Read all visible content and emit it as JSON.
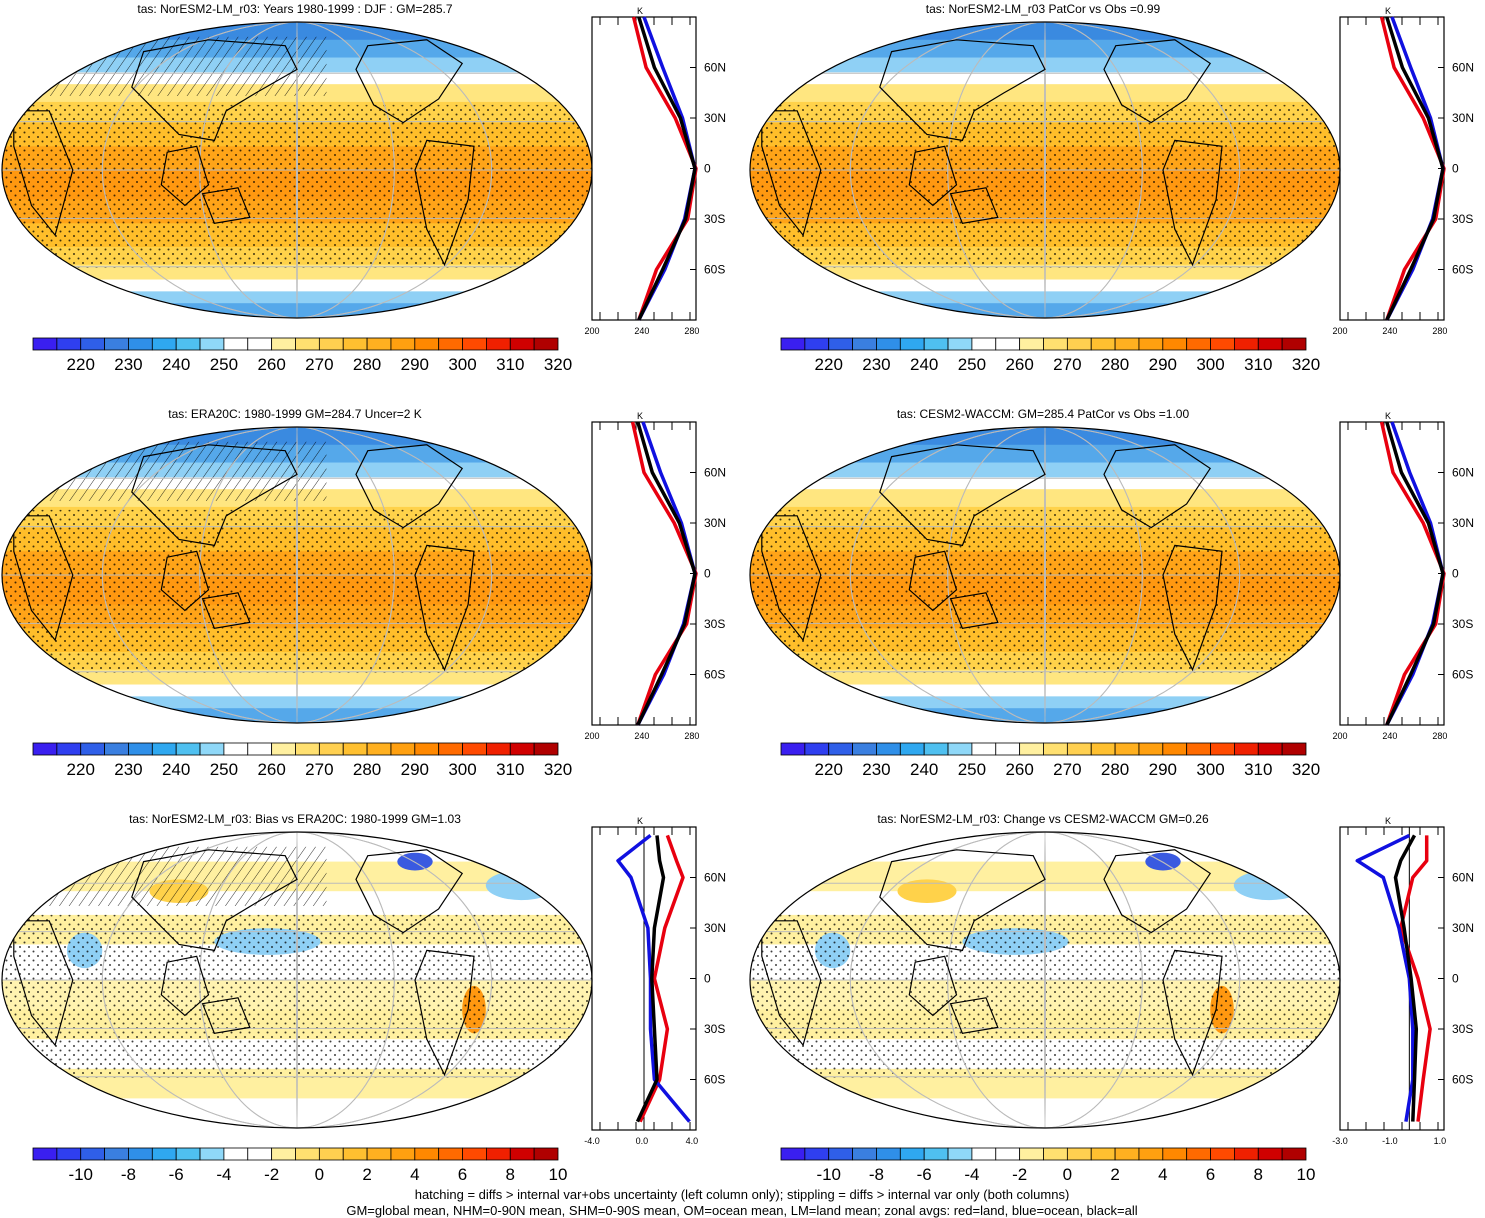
{
  "colorbars": {
    "absolute": {
      "colors": [
        "#3a1ff0",
        "#2f3ff0",
        "#2f5fe8",
        "#3a7fe0",
        "#2f8fe8",
        "#2fa8f0",
        "#4fc0f0",
        "#8fd8f8",
        "#ffffff",
        "#ffffff",
        "#fff0a0",
        "#ffe070",
        "#ffd050",
        "#ffc030",
        "#ffb020",
        "#ffa010",
        "#ff8800",
        "#ff6a00",
        "#ff4a00",
        "#f02000",
        "#d00000",
        "#b00000"
      ],
      "labels": [
        "220",
        "230",
        "240",
        "250",
        "260",
        "270",
        "280",
        "290",
        "300",
        "310",
        "320"
      ]
    },
    "difference": {
      "colors": [
        "#3a1ff0",
        "#2f3ff0",
        "#2f5fe8",
        "#3a7fe0",
        "#2f8fe8",
        "#2fa8f0",
        "#4fc0f0",
        "#8fd8f8",
        "#ffffff",
        "#ffffff",
        "#fff0a0",
        "#ffe070",
        "#ffd050",
        "#ffc030",
        "#ffb020",
        "#ffa010",
        "#ff8800",
        "#ff6a00",
        "#ff4a00",
        "#f02000",
        "#d00000",
        "#b00000"
      ],
      "labels": [
        "-10",
        "-8",
        "-6",
        "-4",
        "-2",
        "0",
        "2",
        "4",
        "6",
        "8",
        "10"
      ]
    }
  },
  "zonal_axis": {
    "unit": "K",
    "lat_labels": [
      "60N",
      "30N",
      "0",
      "30S",
      "60S"
    ],
    "x_labels_abs": [
      "200",
      "240",
      "280"
    ],
    "x_labels_bias": [
      "-4.0",
      "0.0",
      "4.0"
    ],
    "x_labels_change": [
      "-3.0",
      "-1.0",
      "1.0"
    ]
  },
  "panels": [
    {
      "title": "tas: NorESM2-LM_r03: Years 1980-1999 : DJF : GM=285.7",
      "map": "abs",
      "hatch": true,
      "bar": "absolute",
      "zonal": "abs",
      "xlab": "x_labels_abs"
    },
    {
      "title": "tas: NorESM2-LM_r03 PatCor vs Obs =0.99",
      "map": "abs",
      "hatch": false,
      "bar": "absolute",
      "zonal": "abs",
      "xlab": "x_labels_abs"
    },
    {
      "title": "tas: ERA20C: 1980-1999 GM=284.7 Uncer=2 K",
      "map": "abs",
      "hatch": true,
      "bar": "absolute",
      "zonal": "abs",
      "xlab": "x_labels_abs"
    },
    {
      "title": "tas: CESM2-WACCM: GM=285.4 PatCor vs Obs =1.00",
      "map": "abs",
      "hatch": false,
      "bar": "absolute",
      "zonal": "abs",
      "xlab": "x_labels_abs"
    },
    {
      "title": "tas: NorESM2-LM_r03: Bias vs ERA20C: 1980-1999 GM=1.03",
      "map": "bias",
      "hatch": true,
      "bar": "difference",
      "zonal": "bias",
      "xlab": "x_labels_bias"
    },
    {
      "title": "tas: NorESM2-LM_r03: Change vs CESM2-WACCM GM=0.26",
      "map": "change",
      "hatch": false,
      "bar": "difference",
      "zonal": "change",
      "xlab": "x_labels_change"
    }
  ],
  "footnote": {
    "line1": "hatching = diffs > internal var+obs uncertainty (left column only); stippling = diffs > internal var only (both columns)",
    "line2": "GM=global mean, NHM=0-90N mean, SHM=0-90S mean, OM=ocean mean, LM=land mean; zonal avgs: red=land, blue=ocean, black=all"
  },
  "chart_data": [
    {
      "type": "heatmap",
      "title": "tas: NorESM2-LM_r03: Years 1980-1999 : DJF : GM=285.7",
      "units": "K",
      "colorbar_range": [
        220,
        320
      ],
      "zonal_mean_profile": {
        "lat": [
          -90,
          -60,
          -30,
          0,
          30,
          60,
          90
        ],
        "all": [
          245,
          268,
          290,
          299,
          285,
          260,
          245
        ],
        "land": [
          245,
          262,
          292,
          300,
          280,
          252,
          240
        ],
        "ocean": [
          245,
          270,
          289,
          299,
          287,
          268,
          250
        ]
      }
    },
    {
      "type": "heatmap",
      "title": "tas: NorESM2-LM_r03 PatCor vs Obs =0.99",
      "units": "K",
      "colorbar_range": [
        220,
        320
      ],
      "zonal_mean_profile": {
        "lat": [
          -90,
          -60,
          -30,
          0,
          30,
          60,
          90
        ],
        "all": [
          245,
          268,
          290,
          299,
          285,
          260,
          245
        ],
        "land": [
          245,
          262,
          292,
          300,
          280,
          252,
          240
        ],
        "ocean": [
          245,
          270,
          289,
          299,
          287,
          268,
          250
        ]
      }
    },
    {
      "type": "heatmap",
      "title": "tas: ERA20C: 1980-1999 GM=284.7 Uncer=2 K",
      "units": "K",
      "colorbar_range": [
        220,
        320
      ],
      "zonal_mean_profile": {
        "lat": [
          -90,
          -60,
          -30,
          0,
          30,
          60,
          90
        ],
        "all": [
          244,
          267,
          289,
          299,
          284,
          258,
          244
        ],
        "land": [
          244,
          261,
          291,
          300,
          279,
          250,
          239
        ],
        "ocean": [
          244,
          269,
          288,
          299,
          286,
          266,
          249
        ]
      }
    },
    {
      "type": "heatmap",
      "title": "tas: CESM2-WACCM: GM=285.4 PatCor vs Obs =1.00",
      "units": "K",
      "colorbar_range": [
        220,
        320
      ],
      "zonal_mean_profile": {
        "lat": [
          -90,
          -60,
          -30,
          0,
          30,
          60,
          90
        ],
        "all": [
          245,
          268,
          290,
          299,
          285,
          259,
          245
        ],
        "land": [
          245,
          262,
          292,
          300,
          280,
          251,
          240
        ],
        "ocean": [
          245,
          270,
          289,
          299,
          287,
          267,
          250
        ]
      }
    },
    {
      "type": "heatmap",
      "title": "tas: NorESM2-LM_r03: Bias vs ERA20C: 1980-1999 GM=1.03",
      "units": "K",
      "colorbar_range": [
        -10,
        10
      ],
      "zonal_mean_profile": {
        "lat": [
          -85,
          -60,
          -30,
          0,
          30,
          60,
          70,
          85
        ],
        "all": [
          -0.5,
          1.0,
          0.8,
          0.6,
          0.8,
          1.5,
          1.2,
          1.0
        ],
        "land": [
          -0.3,
          1.2,
          1.8,
          0.8,
          1.6,
          3.0,
          2.5,
          1.8
        ],
        "ocean": [
          3.5,
          0.8,
          0.5,
          0.5,
          0.3,
          -1.0,
          -2.0,
          0.5
        ]
      }
    },
    {
      "type": "heatmap",
      "title": "tas: NorESM2-LM_r03: Change vs CESM2-WACCM GM=0.26",
      "units": "K",
      "colorbar_range": [
        -10,
        10
      ],
      "zonal_mean_profile": {
        "lat": [
          -85,
          -60,
          -30,
          0,
          30,
          60,
          70,
          85
        ],
        "all": [
          0.2,
          0.3,
          0.4,
          0.1,
          -0.3,
          -0.8,
          -0.5,
          0.3
        ],
        "land": [
          0.5,
          0.8,
          1.2,
          0.5,
          -0.5,
          0.2,
          1.0,
          1.0
        ],
        "ocean": [
          -0.2,
          0.2,
          0.2,
          0.0,
          -0.6,
          -1.5,
          -3.0,
          0.0
        ]
      }
    }
  ]
}
